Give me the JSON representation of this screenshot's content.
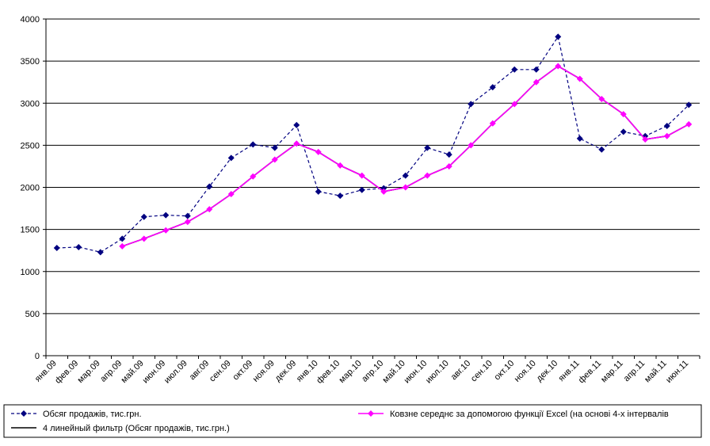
{
  "chart_data": {
    "type": "line",
    "title": "",
    "xlabel": "",
    "ylabel": "",
    "ylim": [
      0,
      4000
    ],
    "yticks": [
      0,
      500,
      1000,
      1500,
      2000,
      2500,
      3000,
      3500,
      4000
    ],
    "grid": true,
    "legend_position": "bottom",
    "categories": [
      "янв.09",
      "фев.09",
      "мар.09",
      "апр.09",
      "май.09",
      "июн.09",
      "июл.09",
      "авг.09",
      "сен.09",
      "окт.09",
      "ноя.09",
      "дек.09",
      "янв.10",
      "фев.10",
      "мар.10",
      "апр.10",
      "май.10",
      "июн.10",
      "июл.10",
      "авг.10",
      "сен.10",
      "окт.10",
      "ноя.10",
      "дек.10",
      "янв.11",
      "фев.11",
      "мар.11",
      "апр.11",
      "май.11",
      "июн.11"
    ],
    "series": [
      {
        "name": "Обсяг продажів, тис.грн.",
        "color": "#000080",
        "line_style": "dashed",
        "marker": "diamond",
        "values": [
          1280,
          1290,
          1230,
          1390,
          1650,
          1670,
          1660,
          2010,
          2350,
          2510,
          2470,
          2740,
          1950,
          1900,
          1970,
          1990,
          2140,
          2470,
          2390,
          2990,
          3190,
          3400,
          3400,
          3790,
          2580,
          2450,
          2660,
          2610,
          2730,
          2980
        ]
      },
      {
        "name": "Ковзне середнє за допомогою функції Excel (на основі 4-х інтервалів",
        "color": "#ff00ff",
        "line_style": "solid",
        "marker": "diamond",
        "values": [
          null,
          null,
          null,
          1300,
          1390,
          1490,
          1590,
          1740,
          1920,
          2130,
          2330,
          2520,
          2420,
          2260,
          2140,
          1950,
          2000,
          2140,
          2250,
          2500,
          2760,
          2990,
          3250,
          3440,
          3290,
          3050,
          2870,
          2570,
          2610,
          2750
        ]
      },
      {
        "name": "4 линейный фильтр (Обсяг продажів, тис.грн.)",
        "color": "#000000",
        "line_style": "solid",
        "marker": "none",
        "values": [
          null,
          null,
          null,
          1300,
          1390,
          1490,
          1590,
          1740,
          1920,
          2130,
          2330,
          2520,
          2420,
          2260,
          2140,
          1950,
          2000,
          2140,
          2250,
          2500,
          2760,
          2990,
          3250,
          3440,
          3290,
          3050,
          2870,
          2570,
          2610,
          2750
        ]
      }
    ]
  }
}
